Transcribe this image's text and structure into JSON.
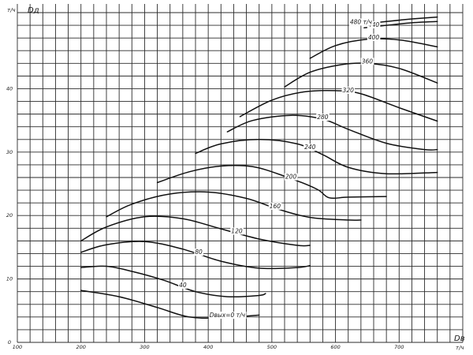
{
  "chart_data": {
    "type": "line",
    "title": "",
    "xlabel": "Dв",
    "x_unit": "т/ч",
    "ylabel": "Dд",
    "y_unit": "т/ч",
    "xlim": [
      100,
      800
    ],
    "ylim": [
      0,
      52
    ],
    "x_ticks": [
      "100",
      "200",
      "300",
      "400",
      "500",
      "600",
      "700"
    ],
    "y_ticks": [
      "0",
      "10",
      "20",
      "30",
      "40"
    ],
    "grid": true,
    "legend": "none",
    "series": [
      {
        "label": "Dвых=0 т/ч",
        "x": [
          200,
          260,
          320,
          370,
          420,
          480
        ],
        "y": [
          8.2,
          7.2,
          5.5,
          4.0,
          3.9,
          4.3
        ]
      },
      {
        "label": "40",
        "x": [
          200,
          240,
          280,
          330,
          380,
          430,
          480,
          490
        ],
        "y": [
          11.8,
          12.0,
          11.2,
          9.8,
          8.0,
          7.2,
          7.4,
          7.7
        ]
      },
      {
        "label": "80",
        "x": [
          200,
          240,
          300,
          360,
          420,
          480,
          540,
          560
        ],
        "y": [
          14.2,
          15.4,
          15.9,
          14.7,
          12.8,
          11.7,
          11.8,
          12.1
        ]
      },
      {
        "label": "120",
        "x": [
          200,
          240,
          300,
          360,
          420,
          480,
          540,
          560
        ],
        "y": [
          16.0,
          18.2,
          19.8,
          19.5,
          17.9,
          16.3,
          15.3,
          15.3
        ]
      },
      {
        "label": "160",
        "x": [
          240,
          280,
          340,
          400,
          460,
          510,
          560,
          620,
          640
        ],
        "y": [
          19.8,
          21.8,
          23.4,
          23.7,
          22.7,
          21.0,
          19.7,
          19.3,
          19.3
        ]
      },
      {
        "label": "200",
        "x": [
          320,
          370,
          420,
          470,
          520,
          570,
          590,
          620,
          680
        ],
        "y": [
          25.2,
          26.9,
          27.8,
          27.7,
          26.2,
          24.2,
          22.8,
          22.9,
          23.0
        ]
      },
      {
        "label": "240",
        "x": [
          380,
          420,
          480,
          540,
          580,
          620,
          680,
          760
        ],
        "y": [
          29.8,
          31.3,
          32.0,
          31.3,
          29.6,
          27.6,
          26.6,
          26.8
        ]
      },
      {
        "label": "280",
        "x": [
          430,
          470,
          530,
          580,
          620,
          680,
          740,
          760
        ],
        "y": [
          33.2,
          35.0,
          35.8,
          35.2,
          33.6,
          31.4,
          30.4,
          30.4
        ]
      },
      {
        "label": "320",
        "x": [
          450,
          500,
          550,
          600,
          640,
          700,
          760
        ],
        "y": [
          35.6,
          38.2,
          39.5,
          39.7,
          39.2,
          37.0,
          34.9
        ]
      },
      {
        "label": "360",
        "x": [
          520,
          560,
          610,
          650,
          700,
          760
        ],
        "y": [
          40.3,
          42.6,
          43.8,
          44.0,
          43.2,
          40.9
        ]
      },
      {
        "label": "400",
        "x": [
          560,
          600,
          650,
          700,
          760
        ],
        "y": [
          44.8,
          46.8,
          47.8,
          47.7,
          46.6
        ]
      },
      {
        "label": "440",
        "x": [
          645,
          680,
          720,
          760
        ],
        "y": [
          49.6,
          50.0,
          50.4,
          50.6
        ]
      },
      {
        "label": "480 т/ч",
        "x": [
          645,
          680,
          720,
          760
        ],
        "y": [
          50.2,
          50.6,
          51.0,
          51.3
        ]
      }
    ]
  }
}
